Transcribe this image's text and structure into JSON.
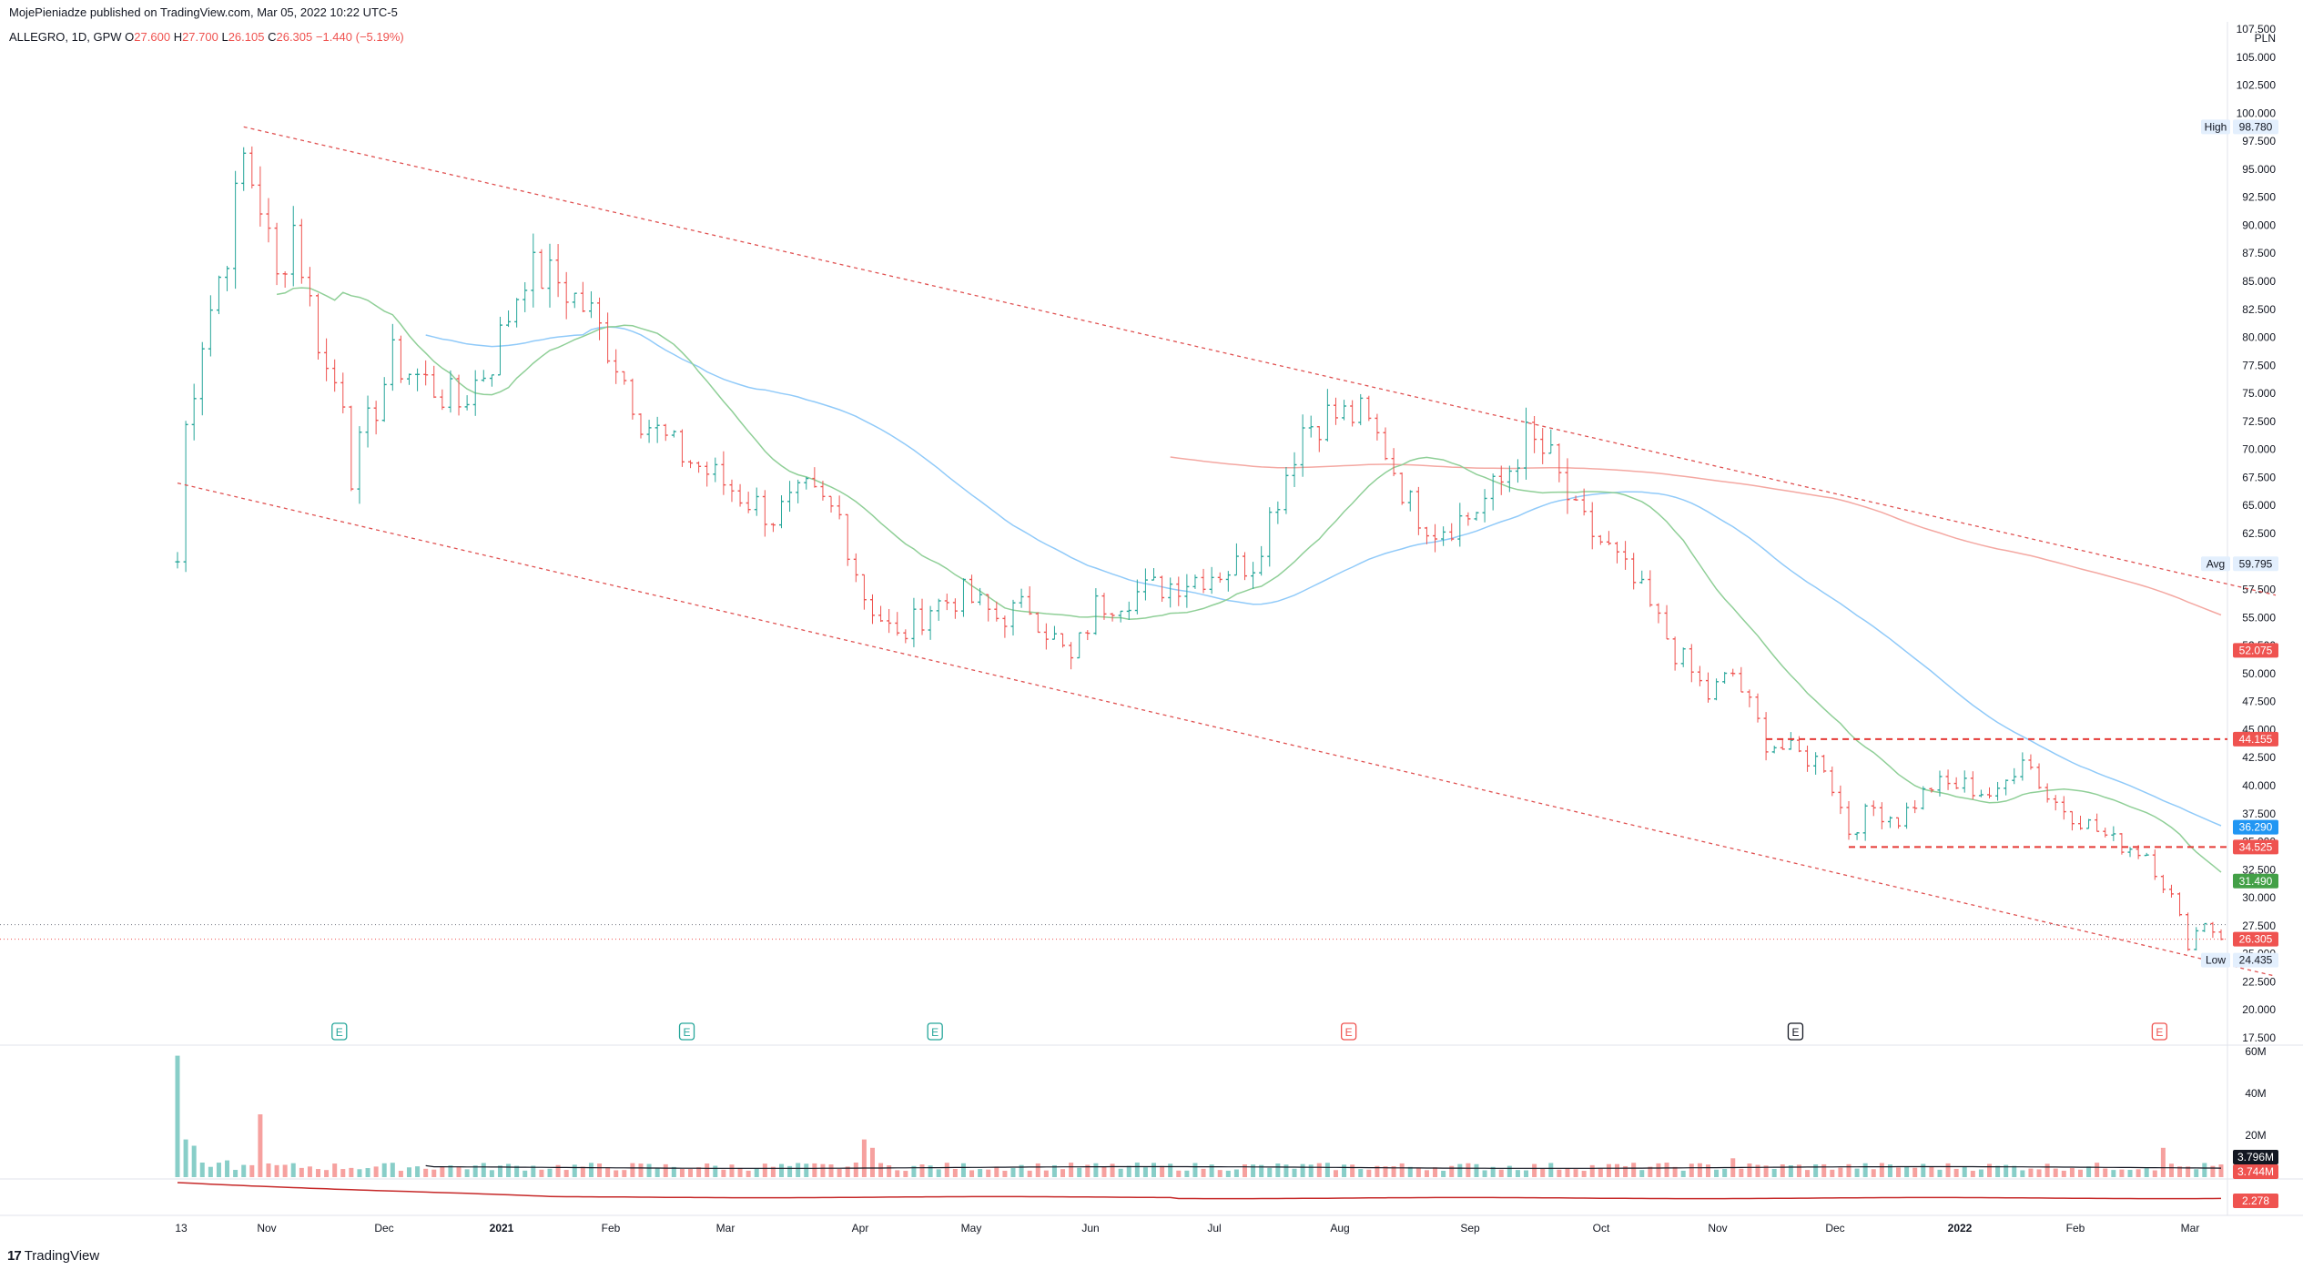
{
  "header": {
    "publisher": "MojePieniadze published on TradingView.com, Mar 05, 2022 10:22 UTC-5",
    "symbol": "ALLEGRO, 1D, GPW",
    "o_label": "O",
    "o_value": "27.600",
    "h_label": "H",
    "h_value": "27.700",
    "l_label": "L",
    "l_value": "26.105",
    "c_label": "C",
    "c_value": "26.305",
    "change": "−1.440 (−5.19%)"
  },
  "footer": {
    "logo_mark": "17",
    "logo_text": "TradingView"
  },
  "colors": {
    "up": "#26a69a",
    "down": "#ef5350",
    "channel": "#e05252",
    "sma_fast": "#8fcf97",
    "sma_mid": "#90caf9",
    "sma_slow": "#f4a8a2"
  },
  "chart_data": {
    "type": "candlestick",
    "currency": "PLN",
    "price_axis_ticks": [
      "107.500",
      "105.000",
      "102.500",
      "100.000",
      "97.500",
      "95.000",
      "92.500",
      "90.000",
      "87.500",
      "85.000",
      "82.500",
      "80.000",
      "77.500",
      "75.000",
      "72.500",
      "70.000",
      "67.500",
      "65.000",
      "62.500",
      "60.000",
      "57.500",
      "55.000",
      "52.500",
      "50.000",
      "47.500",
      "45.000",
      "42.500",
      "40.000",
      "37.500",
      "35.000",
      "32.500",
      "30.000",
      "27.500",
      "25.000",
      "22.500",
      "20.000",
      "17.500"
    ],
    "ylim": [
      17.5,
      107.5
    ],
    "time_axis_labels": [
      "13",
      "Nov",
      "Dec",
      "2021",
      "Feb",
      "Mar",
      "Apr",
      "May",
      "Jun",
      "Jul",
      "Aug",
      "Sep",
      "Oct",
      "Nov",
      "Dec",
      "2022",
      "Feb",
      "Mar"
    ],
    "price_path": [
      [
        0,
        60
      ],
      [
        1,
        72
      ],
      [
        3,
        80
      ],
      [
        6,
        88
      ],
      [
        8,
        96
      ],
      [
        10,
        92
      ],
      [
        12,
        85
      ],
      [
        14,
        90
      ],
      [
        16,
        83
      ],
      [
        18,
        77
      ],
      [
        20,
        75
      ],
      [
        21,
        68
      ],
      [
        23,
        72
      ],
      [
        26,
        78
      ],
      [
        30,
        76
      ],
      [
        34,
        74
      ],
      [
        38,
        78
      ],
      [
        42,
        86
      ],
      [
        46,
        85
      ],
      [
        50,
        82
      ],
      [
        53,
        78
      ],
      [
        56,
        73
      ],
      [
        60,
        70
      ],
      [
        64,
        68
      ],
      [
        68,
        66
      ],
      [
        72,
        64
      ],
      [
        76,
        66
      ],
      [
        80,
        64
      ],
      [
        83,
        57
      ],
      [
        87,
        53
      ],
      [
        91,
        56
      ],
      [
        95,
        57
      ],
      [
        99,
        55
      ],
      [
        103,
        56
      ],
      [
        106,
        53
      ],
      [
        108,
        51
      ],
      [
        111,
        56
      ],
      [
        115,
        57
      ],
      [
        120,
        58
      ],
      [
        125,
        59
      ],
      [
        130,
        60
      ],
      [
        133,
        66
      ],
      [
        136,
        72
      ],
      [
        139,
        73
      ],
      [
        143,
        73
      ],
      [
        146,
        70
      ],
      [
        149,
        65
      ],
      [
        152,
        63
      ],
      [
        156,
        64
      ],
      [
        160,
        67
      ],
      [
        163,
        71
      ],
      [
        166,
        69
      ],
      [
        169,
        64
      ],
      [
        173,
        61
      ],
      [
        177,
        57
      ],
      [
        181,
        52
      ],
      [
        185,
        48
      ],
      [
        188,
        50
      ],
      [
        192,
        44
      ],
      [
        195,
        43
      ],
      [
        199,
        42
      ],
      [
        202,
        36
      ],
      [
        205,
        38
      ],
      [
        208,
        37
      ],
      [
        212,
        40
      ],
      [
        216,
        40
      ],
      [
        220,
        39
      ],
      [
        223,
        43
      ],
      [
        226,
        39
      ],
      [
        230,
        37
      ],
      [
        234,
        35
      ],
      [
        238,
        34
      ],
      [
        241,
        30
      ],
      [
        243,
        26
      ],
      [
        245,
        28
      ],
      [
        247,
        26.3
      ]
    ],
    "channel_upper": [
      [
        98.78,
        0
      ],
      [
        57.0,
        1
      ]
    ],
    "channel_lower": [
      [
        67.0,
        0
      ],
      [
        23.0,
        1
      ]
    ],
    "events": [
      {
        "label": "E",
        "color": "#26a69a"
      },
      {
        "label": "E",
        "color": "#26a69a"
      },
      {
        "label": "E",
        "color": "#26a69a"
      },
      {
        "label": "E",
        "color": "#ef5350"
      },
      {
        "label": "E",
        "color": "#131722"
      },
      {
        "label": "E",
        "color": "#ef5350"
      }
    ],
    "price_labels": [
      {
        "text": "High",
        "value": "98.780",
        "kind": "plain"
      },
      {
        "text": "Avg",
        "value": "59.795",
        "kind": "plain"
      },
      {
        "text": "",
        "value": "52.075",
        "kind": "red"
      },
      {
        "text": "",
        "value": "44.155",
        "kind": "red"
      },
      {
        "text": "",
        "value": "36.290",
        "kind": "blue"
      },
      {
        "text": "",
        "value": "34.525",
        "kind": "red"
      },
      {
        "text": "",
        "value": "31.490",
        "kind": "green"
      },
      {
        "text": "",
        "value": "26.305",
        "kind": "red"
      },
      {
        "text": "Low",
        "value": "24.435",
        "kind": "plain"
      }
    ],
    "resistance_levels": [
      44.155,
      34.525
    ],
    "volume_axis": [
      "60M",
      "40M",
      "20M"
    ],
    "volume_labels": [
      {
        "value": "3.796M",
        "kind": "dark"
      },
      {
        "value": "3.744M",
        "kind": "red"
      }
    ],
    "indicator_label": {
      "value": "2.278",
      "kind": "red"
    }
  }
}
